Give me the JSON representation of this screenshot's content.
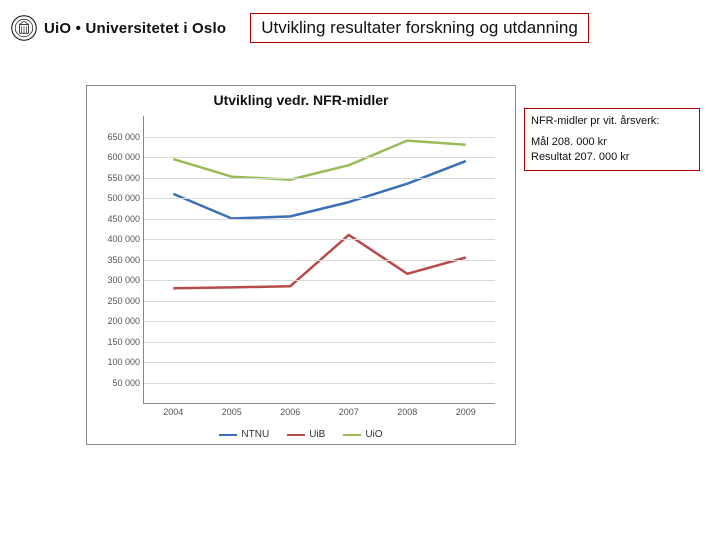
{
  "logo": {
    "abbrev": "UiO",
    "full": "Universitetet i Oslo",
    "seal_color": "#111111"
  },
  "title": "Utvikling resultater forskning og utdanning",
  "title_border": "#b30000",
  "info_box": {
    "line1": "NFR-midler pr vit. årsverk:",
    "line2": "Mål 208. 000 kr",
    "line3": "Resultat 207. 000 kr",
    "border": "#b30000"
  },
  "chart": {
    "type": "line",
    "title": "Utvikling vedr. NFR-midler",
    "title_fontsize": 14,
    "background_color": "#ffffff",
    "plot_border_color": "#888888",
    "grid_color": "#d9d9d9",
    "tick_fontsize": 9,
    "tick_color": "#555555",
    "x_categories": [
      "2004",
      "2005",
      "2006",
      "2007",
      "2008",
      "2009"
    ],
    "ylim": [
      0,
      700000
    ],
    "ytick_step": 50000,
    "y_tick_labels": [
      "50 000",
      "100 000",
      "150 000",
      "200 000",
      "250 000",
      "300 000",
      "350 000",
      "400 000",
      "450 000",
      "500 000",
      "550 000",
      "600 000",
      "650 000"
    ],
    "series": [
      {
        "name": "NTNU",
        "color": "#3b6fb6",
        "width": 2.5,
        "values": [
          510000,
          450000,
          455000,
          490000,
          535000,
          590000
        ]
      },
      {
        "name": "UiB",
        "color": "#b84a4a",
        "width": 2.5,
        "values": [
          280000,
          282000,
          285000,
          410000,
          315000,
          355000
        ]
      },
      {
        "name": "UiO",
        "color": "#9bbb59",
        "width": 2.5,
        "values": [
          595000,
          552000,
          545000,
          580000,
          640000,
          630000
        ]
      }
    ],
    "legend": {
      "position": "bottom",
      "fontsize": 10
    }
  }
}
